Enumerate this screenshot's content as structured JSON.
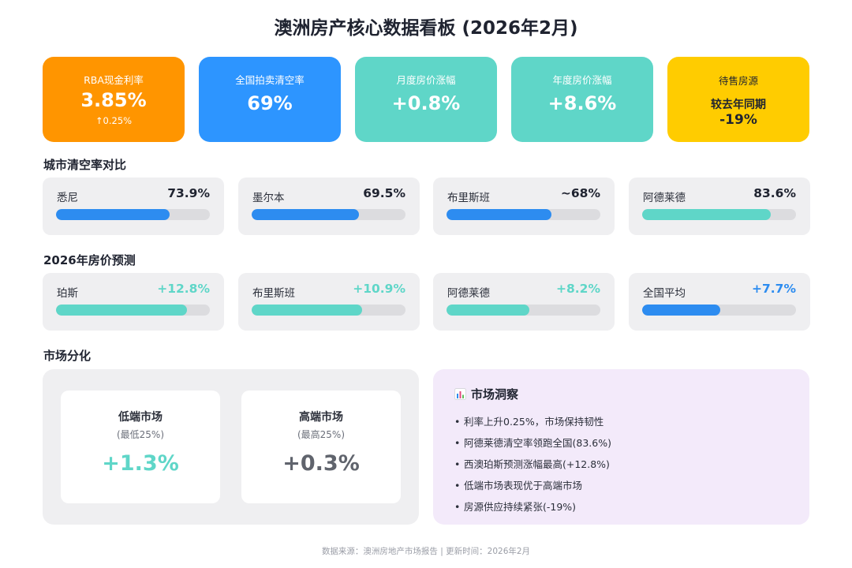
{
  "title": "澳洲房产核心数据看板 (2026年2月)",
  "kpis": {
    "rba": {
      "label": "RBA现金利率",
      "value": "3.85%",
      "sub": "↑0.25%",
      "color": "#ff9500"
    },
    "clearance": {
      "label": "全国拍卖清空率",
      "value": "69%",
      "color": "#2d95ff"
    },
    "monthly": {
      "label": "月度房价涨幅",
      "value": "+0.8%",
      "color": "#5fd6c8"
    },
    "yearly": {
      "label": "年度房价涨幅",
      "value": "+8.6%",
      "color": "#5fd6c8"
    },
    "listings": {
      "label": "待售房源",
      "value_line1": "较去年同期",
      "value_line2": "-19%",
      "color": "#ffcc00"
    }
  },
  "sections": {
    "clearance_compare": "城市清空率对比",
    "forecast": "2026年房价预测",
    "divergence": "市场分化"
  },
  "clearance_cities": [
    {
      "name": "悉尼",
      "value": "73.9%",
      "fill": 0.739,
      "color": "blue"
    },
    {
      "name": "墨尔本",
      "value": "69.5%",
      "fill": 0.695,
      "color": "blue"
    },
    {
      "name": "布里斯班",
      "value": "~68%",
      "fill": 0.68,
      "color": "blue"
    },
    {
      "name": "阿德莱德",
      "value": "83.6%",
      "fill": 0.836,
      "color": "teal"
    }
  ],
  "forecast_cities": [
    {
      "name": "珀斯",
      "value": "+12.8%",
      "fill": 0.85,
      "color": "teal"
    },
    {
      "name": "布里斯班",
      "value": "+10.9%",
      "fill": 0.72,
      "color": "teal"
    },
    {
      "name": "阿德莱德",
      "value": "+8.2%",
      "fill": 0.54,
      "color": "teal"
    },
    {
      "name": "全国平均",
      "value": "+7.7%",
      "fill": 0.51,
      "color": "blue"
    }
  ],
  "segments": {
    "low": {
      "title": "低端市场",
      "subtitle": "(最低25%)",
      "value": "+1.3%"
    },
    "high": {
      "title": "高端市场",
      "subtitle": "(最高25%)",
      "value": "+0.3%"
    }
  },
  "insight": {
    "title": "市场洞察",
    "icon": "bar-chart-icon",
    "bullet": "•",
    "items": [
      "利率上升0.25%，市场保持韧性",
      "阿德莱德清空率领跑全国(83.6%)",
      "西澳珀斯预测涨幅最高(+12.8%)",
      "低端市场表现优于高端市场",
      "房源供应持续紧张(-19%)"
    ]
  },
  "footer": "数据来源：澳洲房地产市场报告 | 更新时间：2026年2月"
}
